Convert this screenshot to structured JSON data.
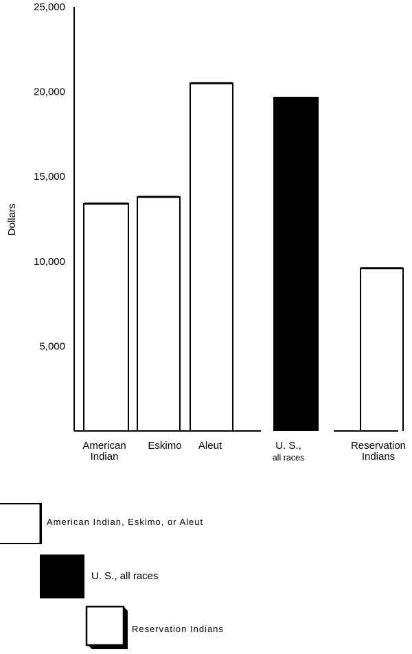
{
  "chart_data": {
    "type": "bar",
    "ylabel": "Dollars",
    "ylim": [
      0,
      25000
    ],
    "yticks": [
      "5,000",
      "10,000",
      "15,000",
      "20,000",
      "25,000"
    ],
    "ytick_values": [
      5000,
      10000,
      15000,
      20000,
      25000
    ],
    "categories": [
      {
        "lines": [
          "American",
          "Indian"
        ],
        "group": "aie"
      },
      {
        "lines": [
          "Eskimo"
        ],
        "group": "aie"
      },
      {
        "lines": [
          "Aleut"
        ],
        "group": "aie"
      },
      {
        "lines": [
          "U. S.,",
          "all races"
        ],
        "group": "us"
      },
      {
        "lines": [
          "Reservation",
          "Indians"
        ],
        "group": "res"
      }
    ],
    "values": [
      13400,
      13800,
      20500,
      19700,
      9600
    ],
    "grid": false,
    "legend": {
      "placement": "bottom",
      "items": [
        {
          "key": "aie",
          "label": "American Indian, Eskimo, or Aleut",
          "fill": "#ffffff"
        },
        {
          "key": "us",
          "label": "U. S., all races",
          "fill": "#000000"
        },
        {
          "key": "res",
          "label": "Reservation Indians",
          "fill": "#ffffff"
        }
      ]
    },
    "colors": {
      "us": "#000000",
      "outline": "#000000",
      "background": "#ffffff"
    }
  }
}
